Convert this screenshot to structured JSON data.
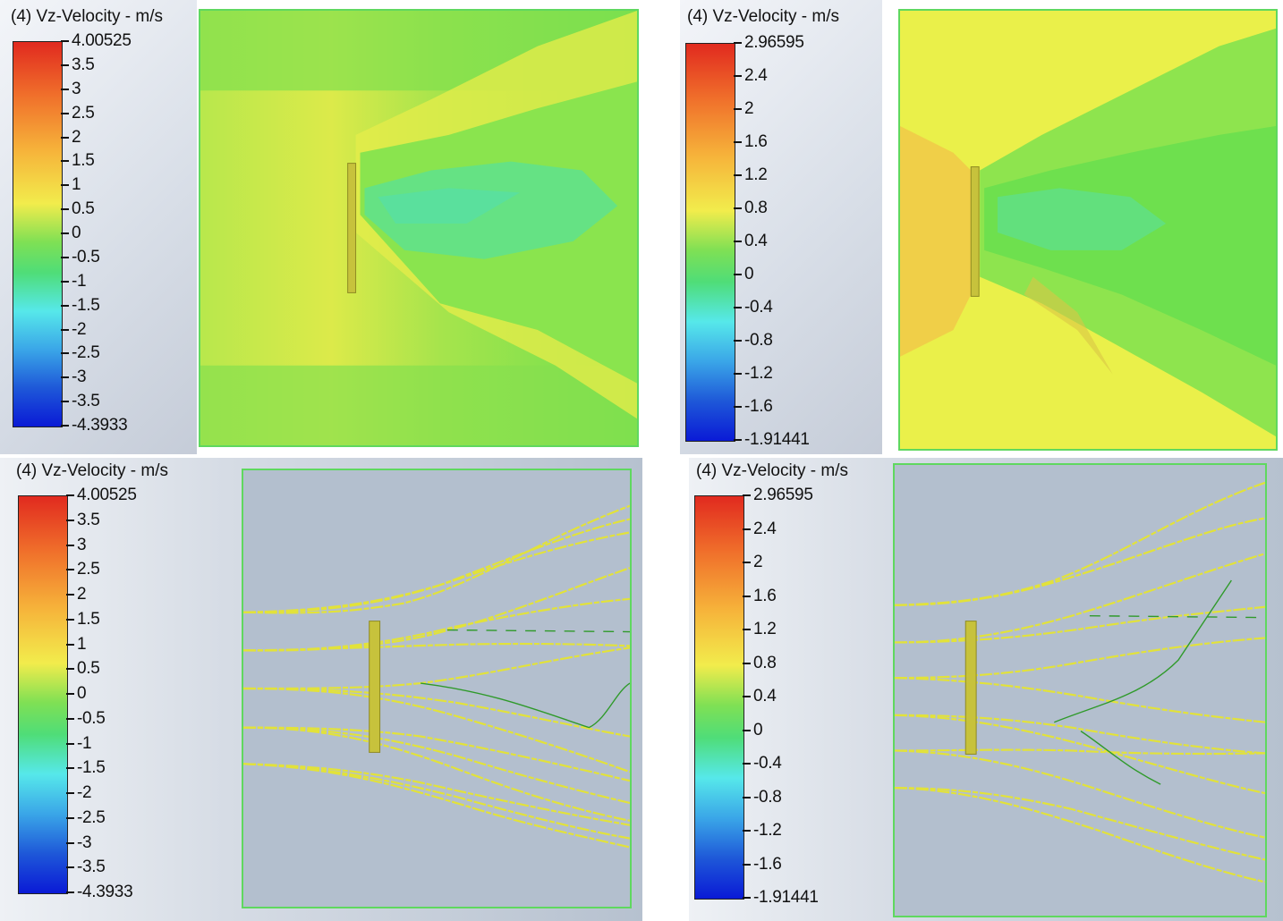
{
  "panels": {
    "tl": {
      "title": "(4) Vz-Velocity - m/s",
      "max_label": "4.00525",
      "min_label": "-4.3933",
      "ticks": [
        "3.5",
        "3",
        "2.5",
        "2",
        "1.5",
        "1",
        "0.5",
        "0",
        "-0.5",
        "-1",
        "-1.5",
        "-2",
        "-2.5",
        "-3",
        "-3.5"
      ]
    },
    "tr": {
      "title": "(4) Vz-Velocity - m/s",
      "max_label": "2.96595",
      "min_label": "-1.91441",
      "ticks": [
        "2.4",
        "2",
        "1.6",
        "1.2",
        "0.8",
        "0.4",
        "0",
        "-0.4",
        "-0.8",
        "-1.2",
        "-1.6"
      ]
    },
    "bl": {
      "title": "(4) Vz-Velocity - m/s",
      "max_label": "4.00525",
      "min_label": "-4.3933",
      "ticks": [
        "3.5",
        "3",
        "2.5",
        "2",
        "1.5",
        "1",
        "0.5",
        "0",
        "-0.5",
        "-1",
        "-1.5",
        "-2",
        "-2.5",
        "-3",
        "-3.5"
      ]
    },
    "br": {
      "title": "(4) Vz-Velocity - m/s",
      "max_label": "2.96595",
      "min_label": "-1.91441",
      "ticks": [
        "2.4",
        "2",
        "1.6",
        "1.2",
        "0.8",
        "0.4",
        "0",
        "-0.4",
        "-0.8",
        "-1.2",
        "-1.6"
      ]
    }
  },
  "colors": {
    "frame": "#5fd85f",
    "contour_green": "#6ee04e",
    "contour_yellow": "#e8ee4a",
    "contour_cyan": "#5fe88a",
    "contour_orange": "#f0cc46",
    "plate": "#c7c23c",
    "flow_bg": "#b3bfce",
    "streamline_yellow": "#e2e23a",
    "streamline_green": "#2f9a2a"
  }
}
